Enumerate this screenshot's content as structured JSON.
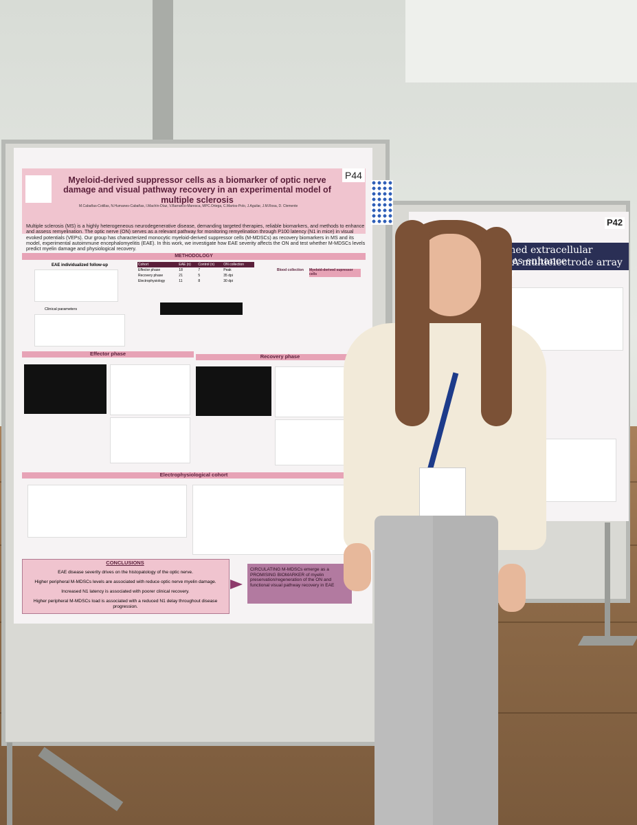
{
  "poster": {
    "number": "P44",
    "title": "Myeloid-derived suppressor cells as a biomarker of optic nerve damage and visual pathway recovery in an experimental model of multiple sclerosis",
    "authors": "M.Cabañas-Cotillas, N.Humanes-Cabañas, I.Machín-Díaz, V.Barranco-Maresca, MPC.Ortega, C.Martos-Polo, J.Aguilar, J.M.Rosa, D. Clemente",
    "intro": "Multiple sclerosis (MS) is a highly heterogeneous neurodegenerative disease, demanding targeted therapies, reliable biomarkers, and methods to enhance and assess remyelination. The optic nerve (ON) serves as a relevant pathway for monitoring remyelination through P100 latency (N1 in mice) in visual evoked potentials (VEPs). Our group has characterized monocytic myeloid-derived suppressor cells (M-MDSCs) as recovery biomarkers in MS and its model, experimental autoimmune encephalomyelitis (EAE). In this work, we investigate how EAE severity affects the ON and test whether M-MDSCs levels predict myelin damage and physiological recovery.",
    "methodology": "METHODOLOGY",
    "panel_a": "EAE individualized follow-up",
    "clinical": "Clinical parameters",
    "blood": "Blood collection",
    "mdsc": "Myeloid-derived supressor cells",
    "table": {
      "header": [
        "Cohort",
        "EAE (n)",
        "Control (n)",
        "ON collection"
      ],
      "rows": [
        [
          "Effector phase",
          "18",
          "7",
          "Peak"
        ],
        [
          "Recovery phase",
          "21",
          "5",
          "35 dpi"
        ],
        [
          "Electrophysiology",
          "11",
          "8",
          "30 dpi"
        ]
      ]
    },
    "effector": "Effector phase",
    "recovery": "Recovery phase",
    "electro": "Electrophysiological cohort",
    "conclusions_title": "CONCLUSIONS",
    "conclusions": [
      "EAE disease severity drives on the histopatology of the optic nerve.",
      "Higher peripheral M-MDSCs levels are associated with reduce optic nerve myelin damage.",
      "Increased N1 latency is associated with poorer clinical recovery.",
      "Higher peripheral M-MDSCs load is associated with a reduced N1 delay throughout disease progression."
    ],
    "take_home": "CIRCULATING M-MDSCs emerge as a PROMISING BIOMARKER of myelin preservation/regeneration of the ON and functional visual pathway recovery in EAE"
  },
  "second_poster": {
    "number": "P42",
    "title_line1": "enriched extracellular vesicles enhance",
    "title_line2": "vity: A multielectrode array study"
  }
}
